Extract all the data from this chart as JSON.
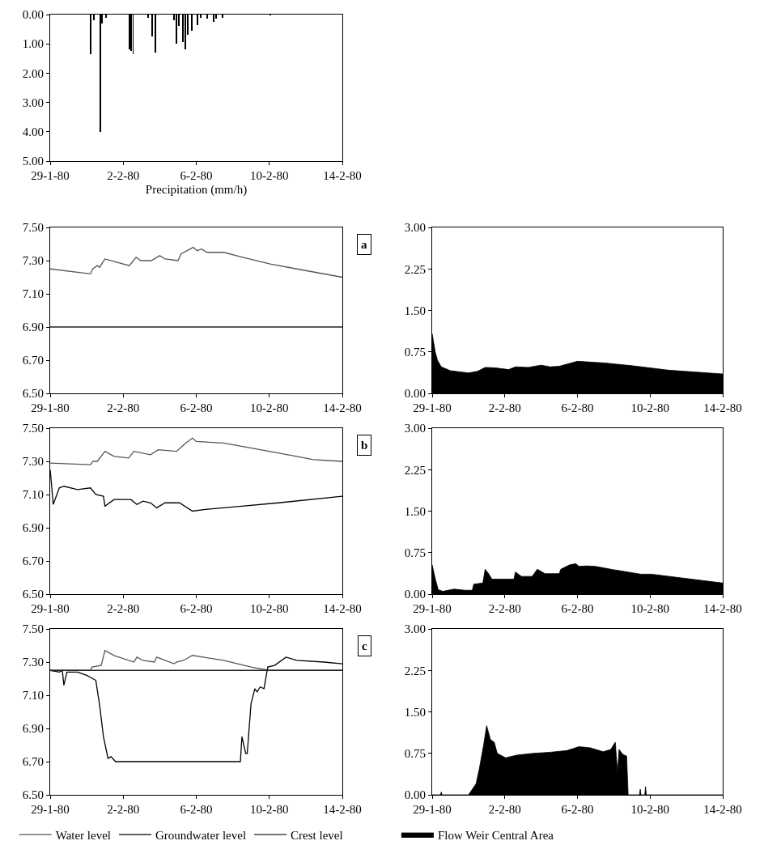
{
  "chart_data": [
    {
      "type": "bar",
      "xlabel": "Precipitation (mm/h)",
      "color": "#000000",
      "x": [
        "1980-01-31T05:00",
        "1980-01-31T09:00",
        "1980-01-31T18:00",
        "1980-01-31T20:00",
        "1980-02-01T01:00",
        "1980-02-02T08:00",
        "1980-02-02T10:00",
        "1980-02-02T13:00",
        "1980-02-03T09:00",
        "1980-02-03T14:00",
        "1980-02-03T18:00",
        "1980-02-04T19:00",
        "1980-02-04T22:00",
        "1980-02-05T01:00",
        "1980-02-05T06:00",
        "1980-02-05T10:00",
        "1980-02-05T13:00",
        "1980-02-05T18:00",
        "1980-02-06T02:00",
        "1980-02-06T06:00",
        "1980-02-06T14:00",
        "1980-02-06T23:00",
        "1980-02-07T02:00",
        "1980-02-07T11:00",
        "1980-02-10T01:00"
      ],
      "values": [
        1.35,
        0.2,
        4.0,
        0.3,
        0.1,
        1.2,
        1.25,
        1.35,
        0.1,
        0.75,
        1.3,
        0.2,
        1.0,
        0.4,
        0.95,
        1.2,
        0.7,
        0.55,
        0.35,
        0.1,
        0.15,
        0.25,
        0.15,
        0.1,
        0.03
      ],
      "xlim": [
        "1980-01-29",
        "1980-02-14"
      ],
      "xticks": [
        {
          "value": "1980-01-29",
          "label": "29-1-80"
        },
        {
          "value": "1980-02-02",
          "label": "2-2-80"
        },
        {
          "value": "1980-02-06",
          "label": "6-2-80"
        },
        {
          "value": "1980-02-10",
          "label": "10-2-80"
        },
        {
          "value": "1980-02-14",
          "label": "14-2-80"
        }
      ],
      "ylim": [
        5,
        0
      ],
      "yticks": [
        {
          "value": 0,
          "label": "0.00"
        },
        {
          "value": 1,
          "label": "1.00"
        },
        {
          "value": 2,
          "label": "2.00"
        },
        {
          "value": 3,
          "label": "3.00"
        },
        {
          "value": 4,
          "label": "4.00"
        },
        {
          "value": 5,
          "label": "5.00"
        }
      ]
    },
    {
      "type": "line",
      "annotations": [
        "a"
      ],
      "series": [
        {
          "color": "#555555",
          "x": [
            "1980-01-29T00:00",
            "1980-01-31T05:00",
            "1980-01-31T08:00",
            "1980-01-31T14:00",
            "1980-01-31T17:00",
            "1980-02-01T00:00",
            "1980-02-02T08:00",
            "1980-02-02T17:00",
            "1980-02-02T23:00",
            "1980-02-03T13:00",
            "1980-02-04T00:00",
            "1980-02-04T07:00",
            "1980-02-05T00:00",
            "1980-02-05T04:00",
            "1980-02-05T20:00",
            "1980-02-06T01:00",
            "1980-02-06T07:00",
            "1980-02-06T14:00",
            "1980-02-07T12:00",
            "1980-02-08T13:00",
            "1980-02-10T01:00",
            "1980-02-11T12:00",
            "1980-02-14T00:00"
          ],
          "values": [
            7.25,
            7.22,
            7.25,
            7.27,
            7.26,
            7.31,
            7.27,
            7.32,
            7.3,
            7.3,
            7.33,
            7.31,
            7.3,
            7.34,
            7.38,
            7.36,
            7.37,
            7.35,
            7.35,
            7.32,
            7.28,
            7.25,
            7.2
          ]
        },
        {
          "color": "#222222",
          "x": [
            "1980-01-29T00:00",
            "1980-02-14T00:00"
          ],
          "values": [
            6.9,
            6.9
          ]
        }
      ],
      "xlim": [
        "1980-01-29",
        "1980-02-14"
      ],
      "xticks": [
        {
          "value": "1980-01-29",
          "label": "29-1-80"
        },
        {
          "value": "1980-02-02",
          "label": "2-2-80"
        },
        {
          "value": "1980-02-06",
          "label": "6-2-80"
        },
        {
          "value": "1980-02-10",
          "label": "10-2-80"
        },
        {
          "value": "1980-02-14",
          "label": "14-2-80"
        }
      ],
      "ylim": [
        6.5,
        7.5
      ],
      "yticks": [
        {
          "value": 6.5,
          "label": "6.50"
        },
        {
          "value": 6.7,
          "label": "6.70"
        },
        {
          "value": 6.9,
          "label": "6.90"
        },
        {
          "value": 7.1,
          "label": "7.10"
        },
        {
          "value": 7.3,
          "label": "7.30"
        },
        {
          "value": 7.5,
          "label": "7.50"
        }
      ]
    },
    {
      "type": "area",
      "series": [
        {
          "color": "#000000",
          "x": [
            "1980-01-29T00:00",
            "1980-01-29T04:00",
            "1980-01-29T07:00",
            "1980-01-29T12:00",
            "1980-01-30T00:00",
            "1980-01-31T00:00",
            "1980-01-31T12:00",
            "1980-01-31T22:00",
            "1980-02-01T12:00",
            "1980-02-02T05:00",
            "1980-02-02T14:00",
            "1980-02-03T07:00",
            "1980-02-04T00:00",
            "1980-02-04T12:00",
            "1980-02-05T00:00",
            "1980-02-06T00:00",
            "1980-02-06T12:00",
            "1980-02-07T12:00",
            "1980-02-09T00:00",
            "1980-02-11T00:00",
            "1980-02-14T00:00"
          ],
          "values": [
            1.08,
            0.75,
            0.6,
            0.48,
            0.41,
            0.37,
            0.4,
            0.47,
            0.46,
            0.43,
            0.48,
            0.47,
            0.51,
            0.48,
            0.49,
            0.58,
            0.57,
            0.55,
            0.5,
            0.42,
            0.35
          ]
        }
      ],
      "xlim": [
        "1980-01-29",
        "1980-02-14"
      ],
      "xticks": [
        {
          "value": "1980-01-29",
          "label": "29-1-80"
        },
        {
          "value": "1980-02-02",
          "label": "2-2-80"
        },
        {
          "value": "1980-02-06",
          "label": "6-2-80"
        },
        {
          "value": "1980-02-10",
          "label": "10-2-80"
        },
        {
          "value": "1980-02-14",
          "label": "14-2-80"
        }
      ],
      "ylim": [
        0,
        3
      ],
      "yticks": [
        {
          "value": 0,
          "label": "0.00"
        },
        {
          "value": 0.75,
          "label": "0.75"
        },
        {
          "value": 1.5,
          "label": "1.50"
        },
        {
          "value": 2.25,
          "label": "2.25"
        },
        {
          "value": 3,
          "label": "3.00"
        }
      ]
    },
    {
      "type": "line",
      "annotations": [
        "b"
      ],
      "series": [
        {
          "color": "#555555",
          "x": [
            "1980-01-29T00:00",
            "1980-01-31T05:00",
            "1980-01-31T08:00",
            "1980-01-31T14:00",
            "1980-02-01T00:00",
            "1980-02-01T12:00",
            "1980-02-02T07:00",
            "1980-02-02T14:00",
            "1980-02-03T12:00",
            "1980-02-03T22:00",
            "1980-02-04T22:00",
            "1980-02-05T10:00",
            "1980-02-05T19:00",
            "1980-02-06T00:00",
            "1980-02-07T12:00",
            "1980-02-10T00:00",
            "1980-02-11T12:00",
            "1980-02-12T10:00",
            "1980-02-14T00:00"
          ],
          "values": [
            7.29,
            7.28,
            7.3,
            7.3,
            7.36,
            7.33,
            7.32,
            7.36,
            7.34,
            7.37,
            7.36,
            7.41,
            7.44,
            7.42,
            7.41,
            7.36,
            7.33,
            7.31,
            7.3
          ]
        },
        {
          "color": "#000000",
          "x": [
            "1980-01-29T00:00",
            "1980-01-29T01:00",
            "1980-01-29T04:00",
            "1980-01-29T12:00",
            "1980-01-29T18:00",
            "1980-01-30T12:00",
            "1980-01-31T05:00",
            "1980-01-31T12:00",
            "1980-01-31T22:00",
            "1980-02-01T00:00",
            "1980-02-01T12:00",
            "1980-02-02T10:00",
            "1980-02-02T18:00",
            "1980-02-03T02:00",
            "1980-02-03T12:00",
            "1980-02-03T20:00",
            "1980-02-04T07:00",
            "1980-02-05T02:00",
            "1980-02-05T19:00",
            "1980-02-06T12:00",
            "1980-02-08T12:00",
            "1980-02-10T12:00",
            "1980-02-14T00:00"
          ],
          "values": [
            7.25,
            7.2,
            7.04,
            7.14,
            7.15,
            7.13,
            7.14,
            7.1,
            7.09,
            7.03,
            7.07,
            7.07,
            7.04,
            7.06,
            7.05,
            7.02,
            7.05,
            7.05,
            7.0,
            7.01,
            7.03,
            7.05,
            7.09
          ]
        }
      ],
      "xlim": [
        "1980-01-29",
        "1980-02-14"
      ],
      "xticks": [
        {
          "value": "1980-01-29",
          "label": "29-1-80"
        },
        {
          "value": "1980-02-02",
          "label": "2-2-80"
        },
        {
          "value": "1980-02-06",
          "label": "6-2-80"
        },
        {
          "value": "1980-02-10",
          "label": "10-2-80"
        },
        {
          "value": "1980-02-14",
          "label": "14-2-80"
        }
      ],
      "ylim": [
        6.5,
        7.5
      ],
      "yticks": [
        {
          "value": 6.5,
          "label": "6.50"
        },
        {
          "value": 6.7,
          "label": "6.70"
        },
        {
          "value": 6.9,
          "label": "6.90"
        },
        {
          "value": 7.1,
          "label": "7.10"
        },
        {
          "value": 7.3,
          "label": "7.30"
        },
        {
          "value": 7.5,
          "label": "7.50"
        }
      ]
    },
    {
      "type": "area",
      "series": [
        {
          "color": "#000000",
          "x": [
            "1980-01-29T00:00",
            "1980-01-29T04:00",
            "1980-01-29T08:00",
            "1980-01-29T14:00",
            "1980-01-30T05:00",
            "1980-01-30T19:00",
            "1980-01-31T05:00",
            "1980-01-31T07:00",
            "1980-01-31T19:00",
            "1980-01-31T22:00",
            "1980-02-01T02:00",
            "1980-02-01T07:00",
            "1980-02-02T12:00",
            "1980-02-02T14:00",
            "1980-02-02T22:00",
            "1980-02-03T12:00",
            "1980-02-03T19:00",
            "1980-02-04T05:00",
            "1980-02-05T00:00",
            "1980-02-05T02:00",
            "1980-02-05T14:00",
            "1980-02-05T22:00",
            "1980-02-06T02:00",
            "1980-02-06T12:00",
            "1980-02-07T00:00",
            "1980-02-08T00:00",
            "1980-02-09T12:00",
            "1980-02-10T02:00",
            "1980-02-14T00:00"
          ],
          "values": [
            0.53,
            0.28,
            0.08,
            0.05,
            0.09,
            0.07,
            0.07,
            0.18,
            0.2,
            0.45,
            0.38,
            0.27,
            0.27,
            0.4,
            0.32,
            0.32,
            0.45,
            0.37,
            0.37,
            0.45,
            0.53,
            0.55,
            0.5,
            0.51,
            0.5,
            0.44,
            0.36,
            0.36,
            0.2
          ]
        }
      ],
      "xlim": [
        "1980-01-29",
        "1980-02-14"
      ],
      "xticks": [
        {
          "value": "1980-01-29",
          "label": "29-1-80"
        },
        {
          "value": "1980-02-02",
          "label": "2-2-80"
        },
        {
          "value": "1980-02-06",
          "label": "6-2-80"
        },
        {
          "value": "1980-02-10",
          "label": "10-2-80"
        },
        {
          "value": "1980-02-14",
          "label": "14-2-80"
        }
      ],
      "ylim": [
        0,
        3
      ],
      "yticks": [
        {
          "value": 0,
          "label": "0.00"
        },
        {
          "value": 0.75,
          "label": "0.75"
        },
        {
          "value": 1.5,
          "label": "1.50"
        },
        {
          "value": 2.25,
          "label": "2.25"
        },
        {
          "value": 3,
          "label": "3.00"
        }
      ]
    },
    {
      "type": "line",
      "annotations": [
        "c"
      ],
      "legend": "bottom",
      "series": [
        {
          "name": "Water level",
          "color": "#555555",
          "x": [
            "1980-01-29T00:00",
            "1980-01-31T05:00",
            "1980-01-31T07:00",
            "1980-01-31T19:00",
            "1980-02-01T00:00",
            "1980-02-01T12:00",
            "1980-02-02T14:00",
            "1980-02-02T18:00",
            "1980-02-03T02:00",
            "1980-02-03T17:00",
            "1980-02-03T20:00",
            "1980-02-04T07:00",
            "1980-02-04T19:00",
            "1980-02-04T22:00",
            "1980-02-05T07:00",
            "1980-02-05T19:00",
            "1980-02-07T12:00",
            "1980-02-09T00:00",
            "1980-02-10T00:00",
            "1980-02-14T00:00"
          ],
          "values": [
            7.25,
            7.25,
            7.27,
            7.28,
            7.37,
            7.34,
            7.3,
            7.33,
            7.31,
            7.3,
            7.33,
            7.31,
            7.29,
            7.3,
            7.31,
            7.34,
            7.31,
            7.27,
            7.25,
            7.25
          ]
        },
        {
          "name": "Groundwater level",
          "color": "#000000",
          "x": [
            "1980-01-29T00:00",
            "1980-01-29T12:00",
            "1980-01-29T16:00",
            "1980-01-29T18:00",
            "1980-01-29T22:00",
            "1980-01-30T12:00",
            "1980-01-31T00:00",
            "1980-01-31T12:00",
            "1980-01-31T17:00",
            "1980-01-31T22:00",
            "1980-02-01T04:00",
            "1980-02-01T08:00",
            "1980-02-01T14:00",
            "1980-02-08T10:00",
            "1980-02-08T12:00",
            "1980-02-08T17:00",
            "1980-02-08T19:00",
            "1980-02-09T00:00",
            "1980-02-09T05:00",
            "1980-02-09T08:00",
            "1980-02-09T12:00",
            "1980-02-09T17:00",
            "1980-02-09T22:00",
            "1980-02-10T07:00",
            "1980-02-10T22:00",
            "1980-02-11T12:00",
            "1980-02-13T00:00",
            "1980-02-14T00:00"
          ],
          "values": [
            7.25,
            7.24,
            7.25,
            7.16,
            7.24,
            7.24,
            7.22,
            7.19,
            7.04,
            6.85,
            6.72,
            6.73,
            6.7,
            6.7,
            6.85,
            6.75,
            6.75,
            7.05,
            7.14,
            7.12,
            7.15,
            7.14,
            7.27,
            7.28,
            7.33,
            7.31,
            7.3,
            7.29
          ]
        },
        {
          "name": "Crest level",
          "color": "#222222",
          "x": [
            "1980-01-29T00:00",
            "1980-02-14T00:00"
          ],
          "values": [
            7.25,
            7.25
          ]
        }
      ],
      "xlim": [
        "1980-01-29",
        "1980-02-14"
      ],
      "xticks": [
        {
          "value": "1980-01-29",
          "label": "29-1-80"
        },
        {
          "value": "1980-02-02",
          "label": "2-2-80"
        },
        {
          "value": "1980-02-06",
          "label": "6-2-80"
        },
        {
          "value": "1980-02-10",
          "label": "10-2-80"
        },
        {
          "value": "1980-02-14",
          "label": "14-2-80"
        }
      ],
      "ylim": [
        6.5,
        7.5
      ],
      "yticks": [
        {
          "value": 6.5,
          "label": "6.50"
        },
        {
          "value": 6.7,
          "label": "6.70"
        },
        {
          "value": 6.9,
          "label": "6.90"
        },
        {
          "value": 7.1,
          "label": "7.10"
        },
        {
          "value": 7.3,
          "label": "7.30"
        },
        {
          "value": 7.5,
          "label": "7.50"
        }
      ]
    },
    {
      "type": "area",
      "legend": "bottom",
      "series": [
        {
          "name": "Flow Weir Central Area",
          "color": "#000000",
          "x": [
            "1980-01-29T00:00",
            "1980-01-29T11:00",
            "1980-01-29T12:00",
            "1980-01-29T13:00",
            "1980-01-31T00:00",
            "1980-01-31T10:00",
            "1980-01-31T14:00",
            "1980-01-31T20:00",
            "1980-02-01T00:00",
            "1980-02-01T05:00",
            "1980-02-01T10:00",
            "1980-02-01T14:00",
            "1980-02-02T01:00",
            "1980-02-02T17:00",
            "1980-02-03T14:00",
            "1980-02-04T12:00",
            "1980-02-05T10:00",
            "1980-02-06T02:00",
            "1980-02-06T17:00",
            "1980-02-07T10:00",
            "1980-02-07T20:00",
            "1980-02-08T02:00",
            "1980-02-08T05:00",
            "1980-02-08T07:00",
            "1980-02-08T12:00",
            "1980-02-08T17:00",
            "1980-02-08T19:00",
            "1980-02-09T10:00",
            "1980-02-09T11:00",
            "1980-02-09T12:00",
            "1980-02-09T17:00",
            "1980-02-09T18:00",
            "1980-02-09T19:00",
            "1980-02-14T00:00"
          ],
          "values": [
            0,
            0,
            0.05,
            0,
            0,
            0.2,
            0.45,
            0.9,
            1.25,
            1.0,
            0.95,
            0.75,
            0.67,
            0.72,
            0.75,
            0.77,
            0.8,
            0.87,
            0.85,
            0.78,
            0.82,
            0.95,
            0.4,
            0.82,
            0.73,
            0.7,
            0,
            0,
            0.1,
            0,
            0,
            0.15,
            0,
            0
          ]
        }
      ],
      "xlim": [
        "1980-01-29",
        "1980-02-14"
      ],
      "xticks": [
        {
          "value": "1980-01-29",
          "label": "29-1-80"
        },
        {
          "value": "1980-02-02",
          "label": "2-2-80"
        },
        {
          "value": "1980-02-06",
          "label": "6-2-80"
        },
        {
          "value": "1980-02-10",
          "label": "10-2-80"
        },
        {
          "value": "1980-02-14",
          "label": "14-2-80"
        }
      ],
      "ylim": [
        0,
        3
      ],
      "yticks": [
        {
          "value": 0,
          "label": "0.00"
        },
        {
          "value": 0.75,
          "label": "0.75"
        },
        {
          "value": 1.5,
          "label": "1.50"
        },
        {
          "value": 2.25,
          "label": "2.25"
        },
        {
          "value": 3,
          "label": "3.00"
        }
      ]
    }
  ]
}
